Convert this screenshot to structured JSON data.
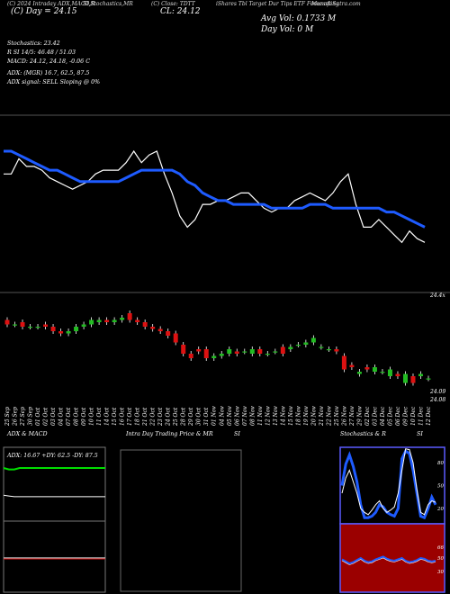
{
  "header": {
    "line1": [
      {
        "text": "(C) 2024 Intraday ADX,MACD,R",
        "left": 8
      },
      {
        "text": "SI,Stochastics,MR",
        "left": 92
      },
      {
        "text": "(C) Close: TDTT",
        "left": 168
      },
      {
        "text": "iShares Tbl Target Dur Tips ETF Forecasting",
        "left": 240
      },
      {
        "text": "MunafaSutra.com",
        "left": 346
      }
    ],
    "ticker_price": "(C) Day = 24.15",
    "close_price": "CL: 24.12",
    "avg_vol": "Avg Vol: 0.1733 M",
    "day_vol": "Day Vol: 0  M"
  },
  "info": {
    "stochastics": "Stochastics: 23.42",
    "rsi": "R                    SI 14/5: 46.48  /  51.03",
    "macd": "MACD: 24.12,  24.18,  -0.06  C",
    "adx": "ADX:                               (MGR) 16.7,  62.5,  87.5",
    "adx_signal": "ADX  signal: SELL  Sloping @ 0%"
  },
  "colors": {
    "ma_line": "#1e5bff",
    "price_line": "#ffffff",
    "bull": "#22bb22",
    "bear": "#dd1111",
    "adx": "#ffffff",
    "plus_di": "#00dd00",
    "minus_di": "#dd2222",
    "rsi_panel_bg": "#9b0000",
    "stoch_k": "#1e5bff"
  },
  "price_labels": {
    "top_right": "24.4x",
    "low_1": "24.09",
    "low_2": "24.08"
  },
  "dates": [
    "25 Sep",
    "26 Sep",
    "27 Sep",
    "30 Sep",
    "01 Oct",
    "02 Oct",
    "03 Oct",
    "04 Oct",
    "07 Oct",
    "08 Oct",
    "09 Oct",
    "10 Oct",
    "11 Oct",
    "14 Oct",
    "15 Oct",
    "16 Oct",
    "17 Oct",
    "18 Oct",
    "21 Oct",
    "22 Oct",
    "23 Oct",
    "24 Oct",
    "25 Oct",
    "28 Oct",
    "29 Oct",
    "30 Oct",
    "31 Oct",
    "01 Nov",
    "04 Nov",
    "05 Nov",
    "06 Nov",
    "07 Nov",
    "08 Nov",
    "11 Nov",
    "12 Nov",
    "13 Nov",
    "14 Nov",
    "15 Nov",
    "18 Nov",
    "19 Nov",
    "20 Nov",
    "21 Nov",
    "22 Nov",
    "25 Nov",
    "26 Nov",
    "27 Nov",
    "29 Nov",
    "02 Dec",
    "03 Dec",
    "04 Dec",
    "05 Dec",
    "06 Dec",
    "09 Dec",
    "10 Dec",
    "11 Dec",
    "12 Dec"
  ],
  "panels": {
    "adx_title": "ADX  & MACD",
    "adx_readout": "ADX: 16.67  +DY: 62.5  -DY: 87.5",
    "intraday_title": "Intra  Day Trading Price  & MR",
    "intraday_title_suffix": "SI",
    "stoch_title": "Stochastics & R",
    "stoch_title_suffix": "SI",
    "stoch_ticks": [
      "80",
      "50",
      "20"
    ],
    "rsi_ticks": [
      "66",
      "50",
      "30"
    ]
  },
  "chart_data": [
    {
      "type": "line",
      "name": "TDTT close with moving average",
      "x": [
        "25 Sep",
        "26 Sep",
        "27 Sep",
        "30 Sep",
        "01 Oct",
        "02 Oct",
        "03 Oct",
        "04 Oct",
        "07 Oct",
        "08 Oct",
        "09 Oct",
        "10 Oct",
        "11 Oct",
        "14 Oct",
        "15 Oct",
        "16 Oct",
        "17 Oct",
        "18 Oct",
        "21 Oct",
        "22 Oct",
        "23 Oct",
        "24 Oct",
        "25 Oct",
        "28 Oct",
        "29 Oct",
        "30 Oct",
        "31 Oct",
        "01 Nov",
        "04 Nov",
        "05 Nov",
        "06 Nov",
        "07 Nov",
        "08 Nov",
        "11 Nov",
        "12 Nov",
        "13 Nov",
        "14 Nov",
        "15 Nov",
        "18 Nov",
        "19 Nov",
        "20 Nov",
        "21 Nov",
        "22 Nov",
        "25 Nov",
        "26 Nov",
        "27 Nov",
        "29 Nov",
        "02 Dec",
        "03 Dec",
        "04 Dec",
        "05 Dec",
        "06 Dec",
        "09 Dec",
        "10 Dec",
        "11 Dec",
        "12 Dec"
      ],
      "series": [
        {
          "name": "",
          "values": [
            24.3,
            24.3,
            24.34,
            24.32,
            24.32,
            24.31,
            24.29,
            24.28,
            24.27,
            24.26,
            24.27,
            24.28,
            24.3,
            24.31,
            24.31,
            24.31,
            24.33,
            24.36,
            24.33,
            24.35,
            24.36,
            24.3,
            24.25,
            24.19,
            24.16,
            24.18,
            24.22,
            24.22,
            24.23,
            24.23,
            24.24,
            24.25,
            24.25,
            24.23,
            24.21,
            24.2,
            24.21,
            24.21,
            24.23,
            24.24,
            24.25,
            24.24,
            24.23,
            24.25,
            24.28,
            24.3,
            24.22,
            24.16,
            24.16,
            24.18,
            24.16,
            24.14,
            24.12,
            24.15,
            24.13,
            24.12
          ]
        },
        {
          "name": "",
          "values": [
            24.36,
            24.36,
            24.35,
            24.34,
            24.33,
            24.32,
            24.31,
            24.31,
            24.3,
            24.29,
            24.28,
            24.28,
            24.28,
            24.28,
            24.28,
            24.28,
            24.29,
            24.3,
            24.31,
            24.31,
            24.31,
            24.31,
            24.31,
            24.3,
            24.28,
            24.27,
            24.25,
            24.24,
            24.23,
            24.23,
            24.22,
            24.22,
            24.22,
            24.22,
            24.22,
            24.21,
            24.21,
            24.21,
            24.21,
            24.21,
            24.22,
            24.22,
            24.22,
            24.21,
            24.21,
            24.21,
            24.21,
            24.21,
            24.21,
            24.21,
            24.2,
            24.2,
            24.19,
            24.18,
            24.17,
            24.16
          ]
        }
      ]
    },
    {
      "type": "bar",
      "name": "Daily candlesticks",
      "categories": [
        "25 Sep",
        "26 Sep",
        "27 Sep",
        "30 Sep",
        "01 Oct",
        "02 Oct",
        "03 Oct",
        "04 Oct",
        "07 Oct",
        "08 Oct",
        "09 Oct",
        "10 Oct",
        "11 Oct",
        "14 Oct",
        "15 Oct",
        "16 Oct",
        "17 Oct",
        "18 Oct",
        "21 Oct",
        "22 Oct",
        "23 Oct",
        "24 Oct",
        "25 Oct",
        "28 Oct",
        "29 Oct",
        "30 Oct",
        "31 Oct",
        "01 Nov",
        "04 Nov",
        "05 Nov",
        "06 Nov",
        "07 Nov",
        "08 Nov",
        "11 Nov",
        "12 Nov",
        "13 Nov",
        "14 Nov",
        "15 Nov",
        "18 Nov",
        "19 Nov",
        "20 Nov",
        "21 Nov",
        "22 Nov",
        "25 Nov",
        "26 Nov",
        "27 Nov",
        "29 Nov",
        "02 Dec",
        "03 Dec",
        "04 Dec",
        "05 Dec",
        "06 Dec",
        "09 Dec",
        "10 Dec",
        "11 Dec",
        "12 Dec"
      ],
      "open": [
        24.38,
        24.36,
        24.37,
        24.35,
        24.35,
        24.36,
        24.35,
        24.33,
        24.32,
        24.33,
        24.35,
        24.36,
        24.37,
        24.38,
        24.37,
        24.38,
        24.41,
        24.38,
        24.37,
        24.35,
        24.34,
        24.33,
        24.32,
        24.27,
        24.23,
        24.25,
        24.25,
        24.21,
        24.22,
        24.23,
        24.24,
        24.24,
        24.23,
        24.25,
        24.23,
        24.24,
        24.26,
        24.25,
        24.27,
        24.27,
        24.28,
        24.26,
        24.25,
        24.25,
        24.22,
        24.18,
        24.14,
        24.17,
        24.15,
        24.15,
        24.13,
        24.14,
        24.1,
        24.13,
        24.13,
        24.12
      ],
      "close": [
        24.36,
        24.36,
        24.35,
        24.35,
        24.35,
        24.35,
        24.33,
        24.32,
        24.33,
        24.35,
        24.36,
        24.38,
        24.38,
        24.37,
        24.38,
        24.39,
        24.38,
        24.37,
        24.35,
        24.34,
        24.33,
        24.31,
        24.28,
        24.23,
        24.21,
        24.24,
        24.21,
        24.22,
        24.23,
        24.25,
        24.23,
        24.24,
        24.25,
        24.23,
        24.23,
        24.24,
        24.23,
        24.26,
        24.27,
        24.28,
        24.3,
        24.26,
        24.25,
        24.24,
        24.16,
        24.17,
        24.15,
        24.16,
        24.17,
        24.15,
        24.16,
        24.13,
        24.14,
        24.1,
        24.14,
        24.12
      ]
    },
    {
      "type": "line",
      "name": "ADX & MACD",
      "series": [
        {
          "name": "",
          "values": [
            72,
            70,
            70,
            72,
            72,
            72,
            72,
            72,
            72,
            72,
            72,
            72,
            72,
            72,
            72,
            72,
            72,
            72,
            72,
            72
          ]
        },
        {
          "name": "",
          "values": [
            35,
            34,
            33,
            33,
            33,
            33,
            33,
            33,
            33,
            33,
            33,
            33,
            33,
            33,
            33,
            33,
            33,
            33,
            33,
            33
          ]
        }
      ]
    },
    {
      "type": "line",
      "name": "Stochastics & RSI",
      "series": [
        {
          "name": "",
          "values": [
            50,
            78,
            90,
            75,
            55,
            25,
            8,
            8,
            10,
            15,
            25,
            22,
            15,
            12,
            10,
            20,
            85,
            95,
            92,
            70,
            40,
            10,
            8,
            20,
            35,
            25
          ]
        },
        {
          "name": "",
          "values": [
            40,
            60,
            70,
            55,
            40,
            20,
            15,
            12,
            18,
            25,
            30,
            20,
            15,
            18,
            22,
            40,
            70,
            98,
            97,
            80,
            45,
            15,
            12,
            25,
            30,
            28
          ]
        },
        {
          "name": "",
          "values": [
            48,
            45,
            42,
            44,
            47,
            50,
            46,
            44,
            45,
            48,
            50,
            52,
            49,
            47,
            46,
            48,
            50,
            46,
            44,
            45,
            47,
            50,
            49,
            46,
            45,
            46
          ]
        }
      ]
    }
  ]
}
